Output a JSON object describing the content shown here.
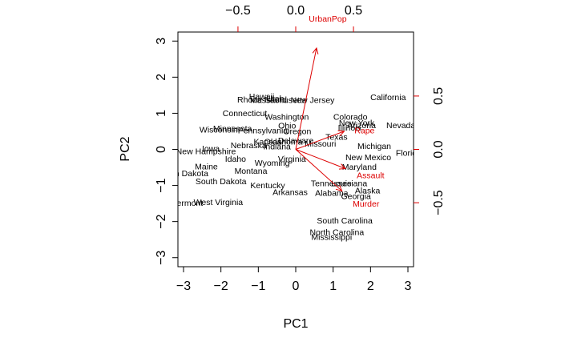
{
  "chart_data": {
    "type": "scatter",
    "title": "",
    "xlabel": "PC1",
    "ylabel": "PC2",
    "xlim": [
      -3.15,
      3.15
    ],
    "ylim": [
      -3.25,
      3.25
    ],
    "xticks": [
      -3,
      -2,
      -1,
      0,
      1,
      2,
      3
    ],
    "yticks": [
      -3,
      -2,
      -1,
      0,
      1,
      2,
      3
    ],
    "loading_axis": {
      "xlim": [
        -1.02,
        1.02
      ],
      "ylim": [
        -1.1,
        1.1
      ],
      "xticks": [
        -0.5,
        0.0,
        0.5
      ],
      "yticks": [
        -0.5,
        0.0,
        0.5
      ],
      "xtick_labels": [
        "-0.5",
        "0.0",
        "0.5"
      ],
      "ytick_labels": [
        "-0.5",
        "0.0",
        "0.5"
      ]
    },
    "loading_color": "#dd0000",
    "points": [
      {
        "label": "Hawaii",
        "x": -0.91,
        "y": 1.47
      },
      {
        "label": "Rhode Island",
        "x": -0.9,
        "y": 1.39
      },
      {
        "label": "Massachusetts",
        "x": -0.47,
        "y": 1.38
      },
      {
        "label": "New Jersey",
        "x": 0.45,
        "y": 1.38
      },
      {
        "label": "Utah",
        "x": -0.55,
        "y": 1.42
      },
      {
        "label": "California",
        "x": 2.47,
        "y": 1.45
      },
      {
        "label": "Connecticut",
        "x": -1.36,
        "y": 1.01
      },
      {
        "label": "Washington",
        "x": -0.24,
        "y": 0.91
      },
      {
        "label": "Colorado",
        "x": 1.46,
        "y": 0.91
      },
      {
        "label": "New York",
        "x": 1.63,
        "y": 0.74
      },
      {
        "label": "Illinois",
        "x": 1.44,
        "y": 0.61
      },
      {
        "label": "Arizona",
        "x": 1.76,
        "y": 0.68
      },
      {
        "label": "Nevada",
        "x": 2.81,
        "y": 0.68
      },
      {
        "label": "Ohio",
        "x": -0.23,
        "y": 0.66
      },
      {
        "label": "Minnesota",
        "x": -1.69,
        "y": 0.59
      },
      {
        "label": "Wisconsin",
        "x": -2.06,
        "y": 0.56
      },
      {
        "label": "Pennsylvania",
        "x": -0.88,
        "y": 0.53
      },
      {
        "label": "Oregon",
        "x": 0.04,
        "y": 0.51
      },
      {
        "label": "Rape",
        "x": 1.84,
        "y": 0.53
      },
      {
        "label": "Texas",
        "x": 1.09,
        "y": 0.36
      },
      {
        "label": "Delaware",
        "x": 0.0,
        "y": 0.25
      },
      {
        "label": "Kansas",
        "x": -0.75,
        "y": 0.22
      },
      {
        "label": "Oklahoma",
        "x": -0.33,
        "y": 0.22
      },
      {
        "label": "Missouri",
        "x": 0.66,
        "y": 0.17
      },
      {
        "label": "Indiana",
        "x": -0.5,
        "y": 0.09
      },
      {
        "label": "Nebraska",
        "x": -1.26,
        "y": 0.12
      },
      {
        "label": "Michigan",
        "x": 2.1,
        "y": 0.1
      },
      {
        "label": "Iowa",
        "x": -2.27,
        "y": 0.03
      },
      {
        "label": "New Hampshire",
        "x": -2.4,
        "y": -0.04
      },
      {
        "label": "Florida",
        "x": 3.02,
        "y": -0.09
      },
      {
        "label": "New Mexico",
        "x": 1.94,
        "y": -0.21
      },
      {
        "label": "Virginia",
        "x": -0.1,
        "y": -0.25
      },
      {
        "label": "Idaho",
        "x": -1.61,
        "y": -0.26
      },
      {
        "label": "Wyoming",
        "x": -0.63,
        "y": -0.37
      },
      {
        "label": "Maryland",
        "x": 1.7,
        "y": -0.48
      },
      {
        "label": "Maine",
        "x": -2.39,
        "y": -0.47
      },
      {
        "label": "Montana",
        "x": -1.2,
        "y": -0.59
      },
      {
        "label": "North Dakota",
        "x": -3.0,
        "y": -0.65
      },
      {
        "label": "Assault",
        "x": 2.0,
        "y": -0.71
      },
      {
        "label": "South Dakota",
        "x": -2.0,
        "y": -0.88
      },
      {
        "label": "Tennessee",
        "x": 0.95,
        "y": -0.93
      },
      {
        "label": "Louisiana",
        "x": 1.43,
        "y": -0.93
      },
      {
        "label": "Kentucky",
        "x": -0.75,
        "y": -0.99
      },
      {
        "label": "Alaska",
        "x": 1.92,
        "y": -1.13
      },
      {
        "label": "Arkansas",
        "x": -0.15,
        "y": -1.18
      },
      {
        "label": "Alabama",
        "x": 0.96,
        "y": -1.2
      },
      {
        "label": "Georgia",
        "x": 1.61,
        "y": -1.29
      },
      {
        "label": "Murder",
        "x": 1.88,
        "y": -1.5
      },
      {
        "label": "Vermont",
        "x": -2.9,
        "y": -1.48
      },
      {
        "label": "West Virginia",
        "x": -2.07,
        "y": -1.45
      },
      {
        "label": "South Carolina",
        "x": 1.31,
        "y": -1.96
      },
      {
        "label": "North Carolina",
        "x": 1.1,
        "y": -2.28
      },
      {
        "label": "Mississippi",
        "x": 0.96,
        "y": -2.42
      }
    ],
    "loadings": [
      {
        "label": "UrbanPop",
        "x": 0.18,
        "y": 0.95
      },
      {
        "label": "Rape",
        "x": 0.42,
        "y": 0.17
      },
      {
        "label": "Assault",
        "x": 0.43,
        "y": -0.18
      },
      {
        "label": "Murder",
        "x": 0.4,
        "y": -0.39
      }
    ]
  }
}
